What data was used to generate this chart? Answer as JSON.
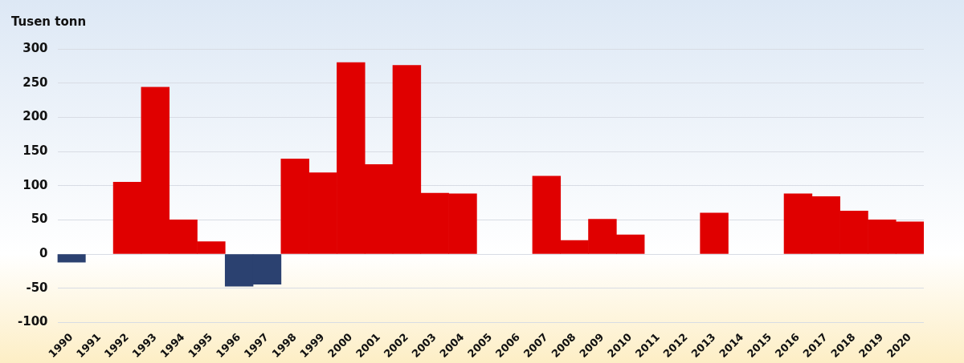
{
  "chart_data": {
    "type": "bar",
    "ylabel": "Tusen tonn",
    "categories": [
      "1990",
      "1991",
      "1992",
      "1993",
      "1994",
      "1995",
      "1996",
      "1997",
      "1998",
      "1999",
      "2000",
      "2001",
      "2002",
      "2003",
      "2004",
      "2005",
      "2006",
      "2007",
      "2008",
      "2009",
      "2010",
      "2011",
      "2012",
      "2013",
      "2014",
      "2015",
      "2016",
      "2017",
      "2018",
      "2019",
      "2020"
    ],
    "values": [
      -12,
      null,
      105,
      244,
      50,
      18,
      -47,
      -44,
      139,
      119,
      280,
      131,
      276,
      89,
      88,
      null,
      null,
      114,
      20,
      51,
      28,
      null,
      null,
      60,
      null,
      null,
      88,
      84,
      63,
      50,
      47
    ],
    "colors": [
      "#2b4170",
      null,
      "#e00000",
      "#e00000",
      "#e00000",
      "#e00000",
      "#2b4170",
      "#2b4170",
      "#e00000",
      "#e00000",
      "#e00000",
      "#e00000",
      "#e00000",
      "#e00000",
      "#e00000",
      null,
      null,
      "#e00000",
      "#e00000",
      "#e00000",
      "#e00000",
      null,
      null,
      "#e00000",
      null,
      null,
      "#e00000",
      "#e00000",
      "#e00000",
      "#e00000",
      "#e00000"
    ],
    "ylim": [
      -100,
      300
    ],
    "yticks": [
      -100,
      -50,
      0,
      50,
      100,
      150,
      200,
      250,
      300
    ],
    "grid": "y"
  }
}
